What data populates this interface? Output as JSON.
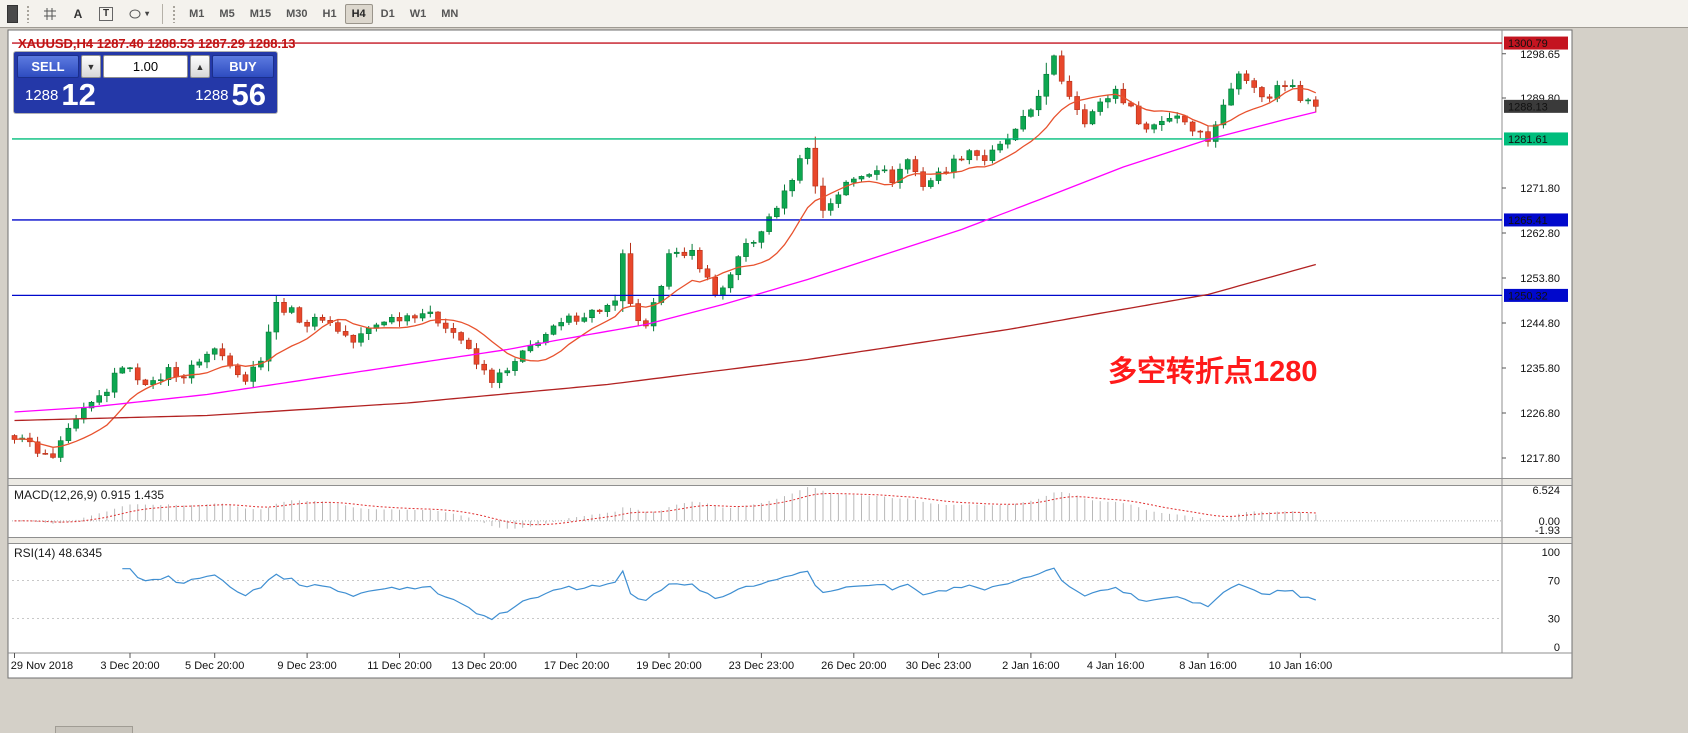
{
  "toolbar": {
    "icons": [
      {
        "name": "crosshair-icon"
      },
      {
        "name": "text-annotation-icon",
        "glyph": "A"
      },
      {
        "name": "text-box-icon",
        "glyph": "T"
      },
      {
        "name": "shapes-icon"
      }
    ],
    "caret": "▾",
    "timeframes": [
      "M1",
      "M5",
      "M15",
      "M30",
      "H1",
      "H4",
      "D1",
      "W1",
      "MN"
    ],
    "active_timeframe": "H4"
  },
  "chart_header": {
    "title": "XAUUSD,H4  1287.40 1288.53 1287.29 1288.13"
  },
  "trade_panel": {
    "sell_label": "SELL",
    "buy_label": "BUY",
    "volume": "1.00",
    "down_glyph": "▼",
    "up_glyph": "▲",
    "sell_price_main": "1288",
    "sell_price_big": "12",
    "buy_price_main": "1288",
    "buy_price_big": "56"
  },
  "annotation": {
    "text": "多空转折点1280",
    "color": "#ff1a1a"
  },
  "indicators": {
    "macd_label": "MACD(12,26,9) 0.915 1.435",
    "rsi_label": "RSI(14) 48.6345"
  },
  "chart_data": {
    "type": "candlestick",
    "symbol": "XAUUSD",
    "period": "H4",
    "ohlc_display": {
      "open": "1287.40",
      "high": "1288.53",
      "low": "1287.29",
      "close": "1288.13"
    },
    "bars": 170,
    "price_axis": {
      "min": 1213.8,
      "max": 1302.8,
      "labels": [
        1298.65,
        1289.8,
        1271.8,
        1262.8,
        1253.8,
        1244.8,
        1235.8,
        1226.8,
        1217.8
      ]
    },
    "close_anchors": [
      [
        0,
        1221.5
      ],
      [
        1,
        1222.5
      ],
      [
        3,
        1218.5
      ],
      [
        5,
        1217.8
      ],
      [
        7,
        1223
      ],
      [
        9,
        1227
      ],
      [
        12,
        1231.5
      ],
      [
        14,
        1236.5
      ],
      [
        16,
        1234
      ],
      [
        18,
        1232.5
      ],
      [
        20,
        1235.5
      ],
      [
        22,
        1234
      ],
      [
        24,
        1237.5
      ],
      [
        26,
        1239.5
      ],
      [
        28,
        1237
      ],
      [
        30,
        1233.5
      ],
      [
        32,
        1238
      ],
      [
        34,
        1248.5
      ],
      [
        36,
        1247
      ],
      [
        38,
        1244.5
      ],
      [
        40,
        1246
      ],
      [
        42,
        1243.5
      ],
      [
        44,
        1241
      ],
      [
        46,
        1243.5
      ],
      [
        48,
        1245.5
      ],
      [
        50,
        1246
      ],
      [
        53,
        1247
      ],
      [
        56,
        1244.5
      ],
      [
        58,
        1241.5
      ],
      [
        60,
        1236.5
      ],
      [
        62,
        1233.5
      ],
      [
        64,
        1235
      ],
      [
        66,
        1238.5
      ],
      [
        68,
        1241.5
      ],
      [
        70,
        1243.5
      ],
      [
        72,
        1245.5
      ],
      [
        74,
        1246.5
      ],
      [
        76,
        1247.5
      ],
      [
        78,
        1248.5
      ],
      [
        79,
        1258
      ],
      [
        80,
        1249
      ],
      [
        81,
        1244.5
      ],
      [
        82,
        1243.5
      ],
      [
        83,
        1248
      ],
      [
        84,
        1253
      ],
      [
        85,
        1259.5
      ],
      [
        87,
        1257.5
      ],
      [
        88,
        1259
      ],
      [
        89,
        1256.5
      ],
      [
        91,
        1250.5
      ],
      [
        93,
        1254
      ],
      [
        95,
        1260.5
      ],
      [
        97,
        1262.5
      ],
      [
        98,
        1266
      ],
      [
        100,
        1270.5
      ],
      [
        101,
        1274
      ],
      [
        103,
        1280.5
      ],
      [
        104,
        1272
      ],
      [
        105,
        1267.5
      ],
      [
        106,
        1269
      ],
      [
        108,
        1272.5
      ],
      [
        110,
        1274.5
      ],
      [
        112,
        1276
      ],
      [
        114,
        1273.5
      ],
      [
        116,
        1277.5
      ],
      [
        118,
        1272.5
      ],
      [
        120,
        1274.5
      ],
      [
        122,
        1277
      ],
      [
        124,
        1279.5
      ],
      [
        126,
        1277.5
      ],
      [
        128,
        1280
      ],
      [
        130,
        1283
      ],
      [
        132,
        1287.5
      ],
      [
        134,
        1294
      ],
      [
        135,
        1297.5
      ],
      [
        136,
        1293.5
      ],
      [
        137,
        1290.5
      ],
      [
        139,
        1285.5
      ],
      [
        141,
        1288.5
      ],
      [
        143,
        1291.5
      ],
      [
        145,
        1287.5
      ],
      [
        147,
        1283.5
      ],
      [
        149,
        1285.5
      ],
      [
        151,
        1286.5
      ],
      [
        153,
        1284
      ],
      [
        155,
        1281.5
      ],
      [
        157,
        1288
      ],
      [
        159,
        1295.5
      ],
      [
        160,
        1294
      ],
      [
        161,
        1291.5
      ],
      [
        163,
        1289.5
      ],
      [
        164,
        1292.5
      ],
      [
        166,
        1293
      ],
      [
        167,
        1290
      ],
      [
        168,
        1289
      ],
      [
        169,
        1288.13
      ]
    ],
    "hlines": [
      {
        "price": 1300.79,
        "color": "#c41420",
        "boxed": true
      },
      {
        "price": 1281.61,
        "color": "#00bd7c",
        "boxed": true
      },
      {
        "price": 1265.41,
        "color": "#0008cc",
        "boxed": true
      },
      {
        "price": 1250.32,
        "color": "#0008cc",
        "boxed": true
      }
    ],
    "current_price": {
      "value": 1288.13,
      "box_color": "#3a3a3a"
    },
    "moving_averages": {
      "fast": {
        "color": "#e8522e",
        "period": 10
      },
      "mid": {
        "color": "#ff00ff",
        "anchors": [
          [
            0,
            1227
          ],
          [
            10,
            1228
          ],
          [
            25,
            1230.5
          ],
          [
            38,
            1233.5
          ],
          [
            51,
            1236.5
          ],
          [
            64,
            1239.5
          ],
          [
            71,
            1241.5
          ],
          [
            82,
            1244.5
          ],
          [
            92,
            1248.5
          ],
          [
            103,
            1253.5
          ],
          [
            113,
            1258.5
          ],
          [
            123,
            1263.5
          ],
          [
            134,
            1270
          ],
          [
            144,
            1276
          ],
          [
            155,
            1281.5
          ],
          [
            165,
            1285.5
          ],
          [
            169,
            1287
          ]
        ]
      },
      "slow": {
        "color": "#b22222",
        "anchors": [
          [
            0,
            1225.3
          ],
          [
            25,
            1226.3
          ],
          [
            51,
            1228.8
          ],
          [
            77,
            1232.5
          ],
          [
            103,
            1237.5
          ],
          [
            129,
            1243.5
          ],
          [
            155,
            1250.5
          ],
          [
            169,
            1256.5
          ]
        ]
      }
    },
    "macd": {
      "fast": 12,
      "slow": 26,
      "signal": 9,
      "current": "0.915 1.435",
      "axis_labels": [
        {
          "v": 6.524,
          "t": "6.524"
        },
        {
          "v": 0,
          "t": "0.00"
        },
        {
          "v": -1.93,
          "t": "-1.93"
        }
      ],
      "axis_max": 6.524,
      "axis_min": -1.93,
      "hist_color": "#b8b8b8",
      "signal_color": "#e03030"
    },
    "rsi": {
      "period": 14,
      "value": 48.6345,
      "axis_labels": [
        100,
        70,
        30,
        0
      ],
      "levels": [
        70,
        30
      ],
      "color": "#3f8fd2"
    },
    "time_labels": [
      {
        "t": "29 Nov 2018",
        "i": 0
      },
      {
        "t": "3 Dec 20:00",
        "i": 15
      },
      {
        "t": "5 Dec 20:00",
        "i": 26
      },
      {
        "t": "9 Dec 23:00",
        "i": 38
      },
      {
        "t": "11 Dec 20:00",
        "i": 50
      },
      {
        "t": "13 Dec 20:00",
        "i": 61
      },
      {
        "t": "17 Dec 20:00",
        "i": 73
      },
      {
        "t": "19 Dec 20:00",
        "i": 85
      },
      {
        "t": "23 Dec 23:00",
        "i": 97
      },
      {
        "t": "26 Dec 20:00",
        "i": 109
      },
      {
        "t": "30 Dec 23:00",
        "i": 120
      },
      {
        "t": "2 Jan 16:00",
        "i": 132
      },
      {
        "t": "4 Jan 16:00",
        "i": 143
      },
      {
        "t": "8 Jan 16:00",
        "i": 155
      },
      {
        "t": "10 Jan 16:00",
        "i": 167
      }
    ],
    "candle_colors": {
      "bull": "#0da750",
      "bull_border": "#067a38",
      "bear": "#e8472b",
      "bear_border": "#b53018"
    },
    "render_hints": {
      "noise": 0.9,
      "wick": 1.15
    }
  }
}
